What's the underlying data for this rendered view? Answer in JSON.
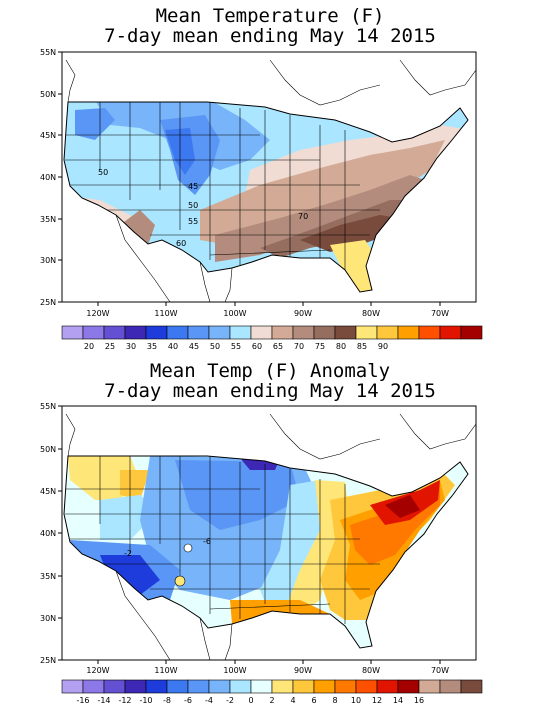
{
  "panels": [
    {
      "title1": "Mean Temperature (F)",
      "title2": "7-day mean ending May 14 2015",
      "lat_labels": [
        "55N",
        "50N",
        "45N",
        "40N",
        "35N",
        "30N",
        "25N"
      ],
      "lon_labels": [
        "120W",
        "110W",
        "100W",
        "90W",
        "80W",
        "70W"
      ],
      "contour_labels": [
        "50",
        "45",
        "50",
        "55",
        "60",
        "70"
      ],
      "legend_labels": [
        "20",
        "25",
        "30",
        "35",
        "40",
        "45",
        "50",
        "55",
        "60",
        "65",
        "70",
        "75",
        "80",
        "85",
        "90"
      ],
      "legend_colors": [
        "#b4a0f0",
        "#8c78e6",
        "#6450d2",
        "#3c28b4",
        "#1e3cdc",
        "#3c78f0",
        "#5a96f5",
        "#78b4fa",
        "#aae6ff",
        "#f0dcd2",
        "#d2aa96",
        "#b48c7d",
        "#966e5f",
        "#784b3c",
        "#ffe678",
        "#ffc83c",
        "#ffa000",
        "#ff5000",
        "#e11400",
        "#a50000"
      ]
    },
    {
      "title1": "Mean Temp (F) Anomaly",
      "title2": "7-day mean ending May 14 2015",
      "lat_labels": [
        "55N",
        "50N",
        "45N",
        "40N",
        "35N",
        "30N",
        "25N"
      ],
      "lon_labels": [
        "120W",
        "110W",
        "100W",
        "90W",
        "80W",
        "70W"
      ],
      "contour_labels": [
        "-6",
        "-2"
      ],
      "legend_labels": [
        "-16",
        "-14",
        "-12",
        "-10",
        "-8",
        "-6",
        "-4",
        "-2",
        "0",
        "2",
        "4",
        "6",
        "8",
        "10",
        "12",
        "14",
        "16"
      ],
      "legend_colors": [
        "#b4a0f0",
        "#8c78e6",
        "#6450d2",
        "#3c28b4",
        "#1e3cdc",
        "#3c78f0",
        "#5a96f5",
        "#78b4fa",
        "#aae6ff",
        "#e6ffff",
        "#ffe678",
        "#ffc83c",
        "#ffa000",
        "#ff7800",
        "#ff5000",
        "#e11400",
        "#a50000",
        "#d2aa96",
        "#b48c7d",
        "#784b3c"
      ]
    }
  ]
}
